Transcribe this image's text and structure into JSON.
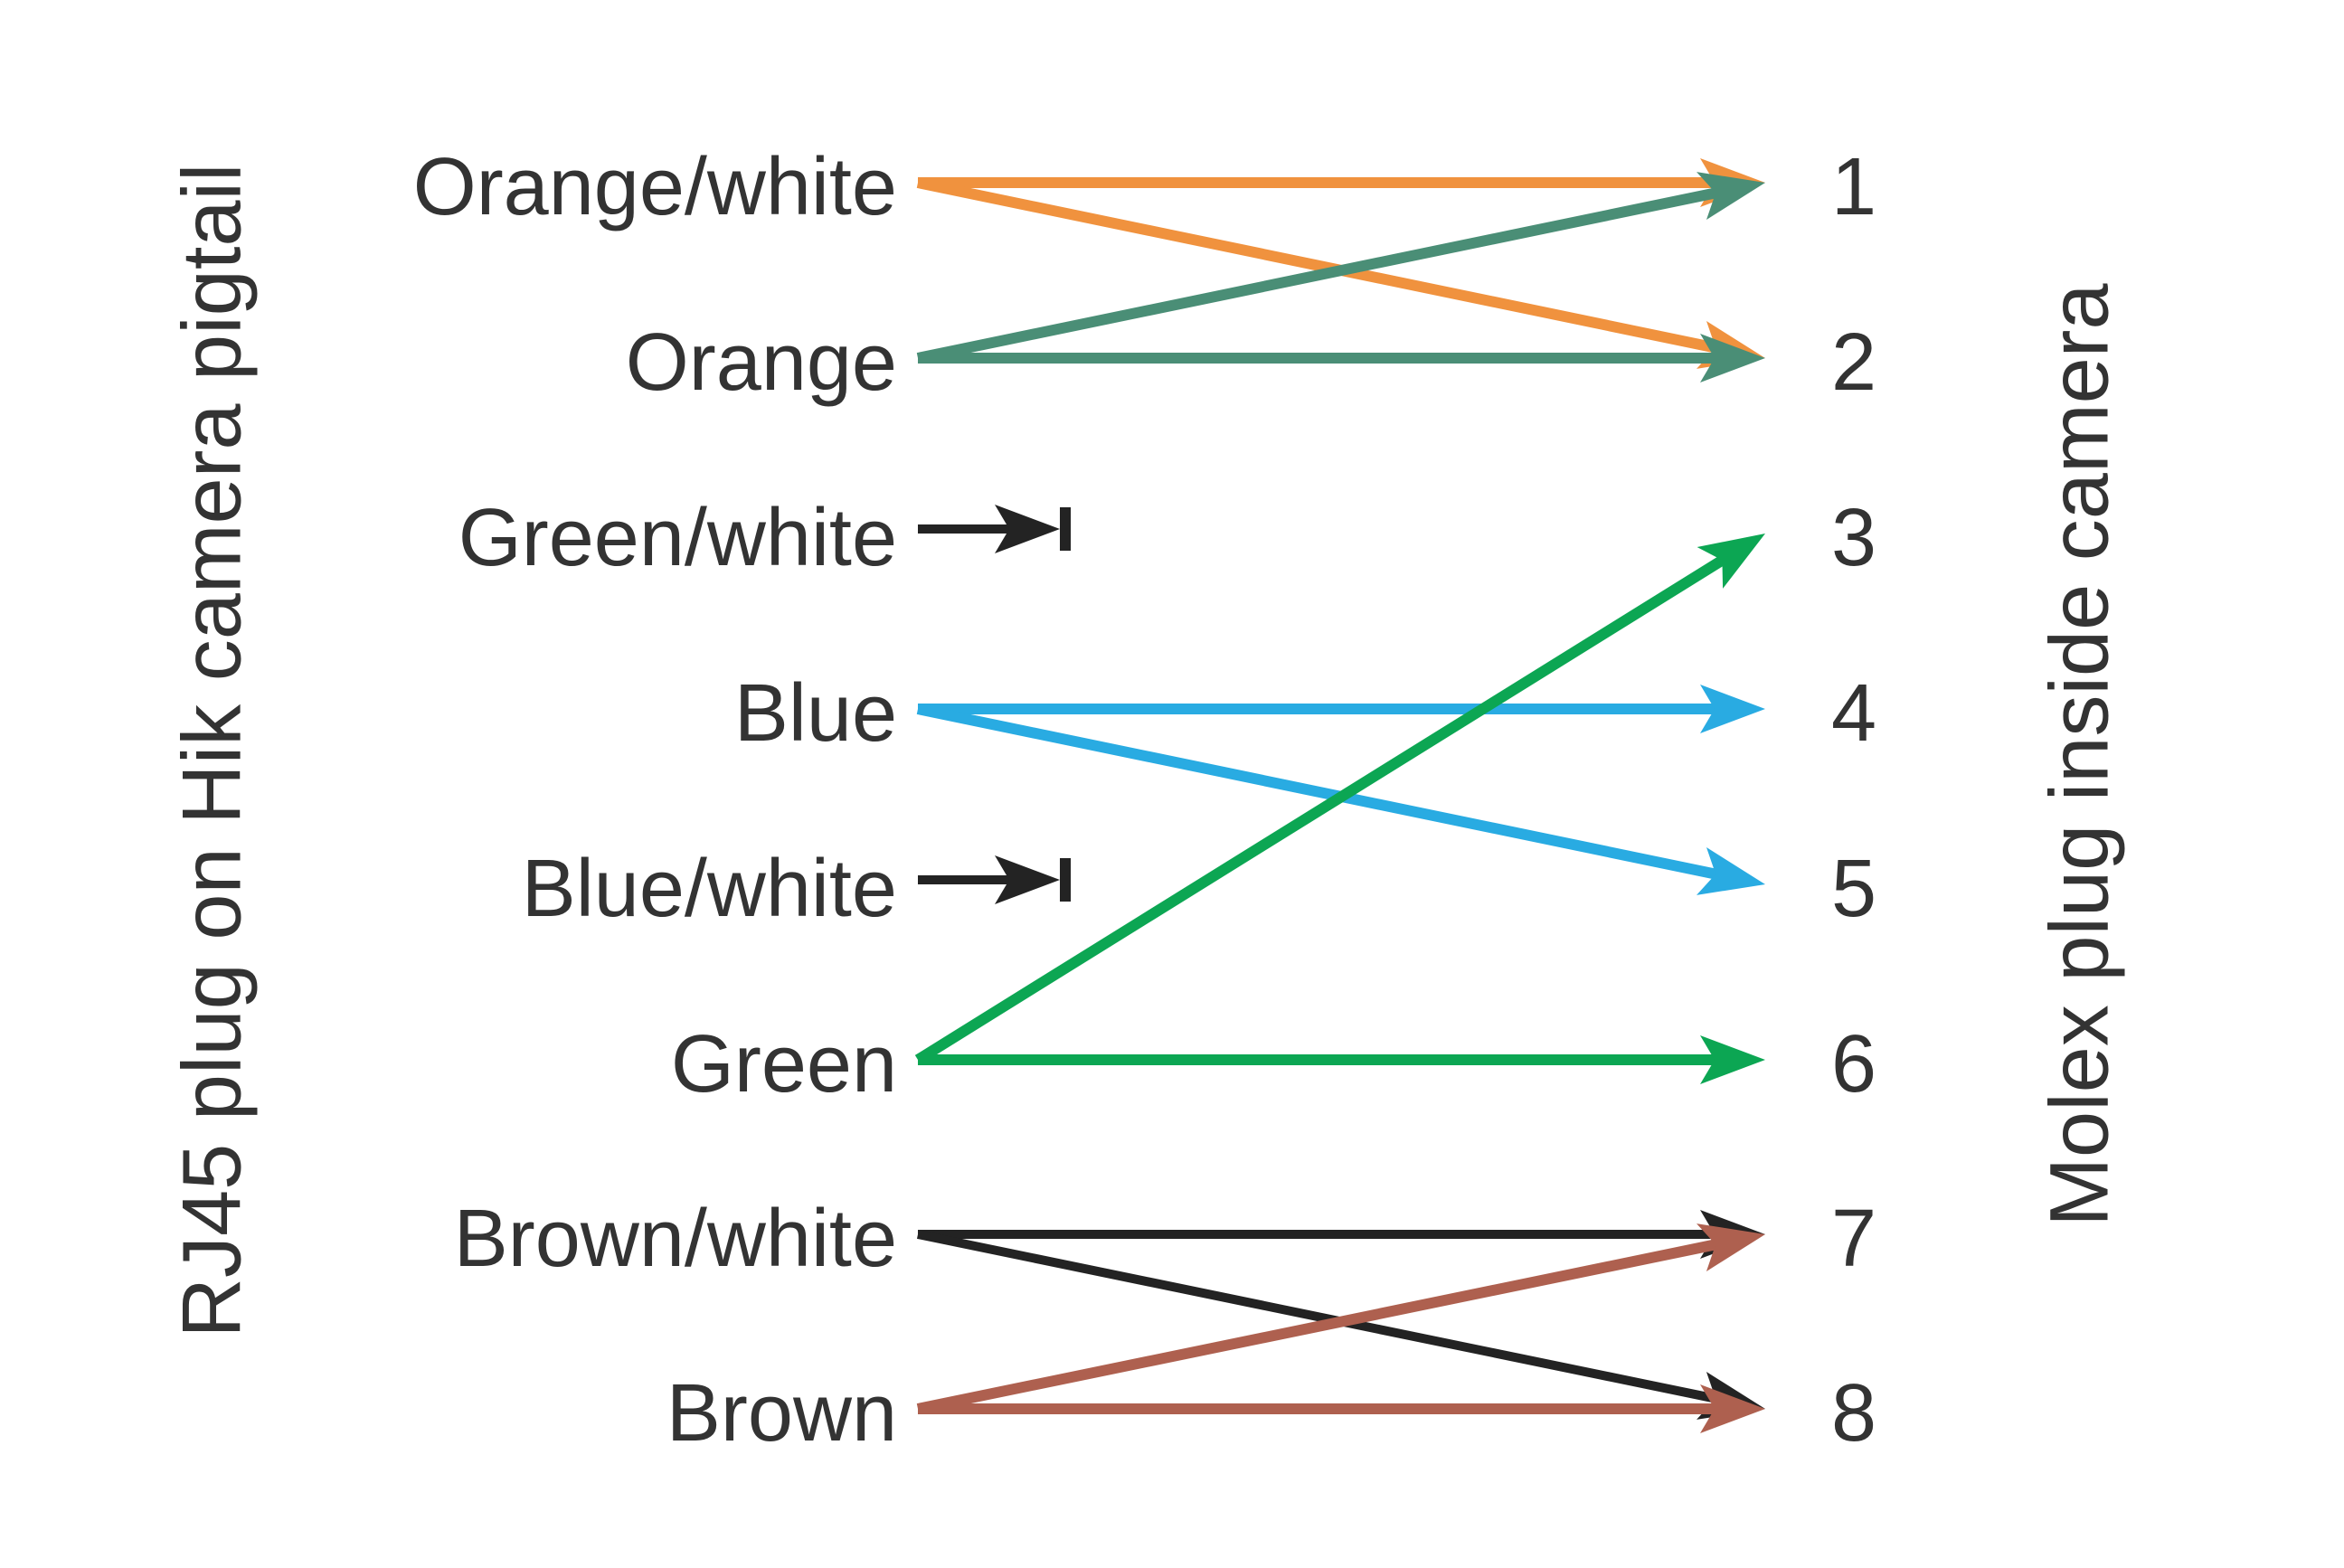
{
  "figure": {
    "left_axis_label": "RJ45 plug on Hik camera pigtail",
    "right_axis_label": "Molex plug inside camera"
  },
  "wires": [
    "Orange/white",
    "Orange",
    "Green/white",
    "Blue",
    "Blue/white",
    "Green",
    "Brown/white",
    "Brown"
  ],
  "pins": [
    "1",
    "2",
    "3",
    "4",
    "5",
    "6",
    "7",
    "8"
  ],
  "colors": {
    "orange": "#F0923E",
    "teal": "#4A8E76",
    "blue": "#29ABE2",
    "green": "#0CA653",
    "black": "#232323",
    "brown": "#AE604F",
    "text": "#333333",
    "background": "#FFFFFF"
  },
  "connections": [
    {
      "from": "Orange/white",
      "to": "1",
      "color": "orange",
      "style": "straight"
    },
    {
      "from": "Orange/white",
      "to": "2",
      "color": "orange",
      "style": "diagonal"
    },
    {
      "from": "Orange",
      "to": "1",
      "color": "teal",
      "style": "diagonal"
    },
    {
      "from": "Orange",
      "to": "2",
      "color": "teal",
      "style": "straight"
    },
    {
      "from": "Green/white",
      "to": null,
      "color": "black",
      "style": "stub"
    },
    {
      "from": "Blue",
      "to": "4",
      "color": "blue",
      "style": "straight"
    },
    {
      "from": "Blue",
      "to": "5",
      "color": "blue",
      "style": "diagonal"
    },
    {
      "from": "Blue/white",
      "to": null,
      "color": "black",
      "style": "stub"
    },
    {
      "from": "Green",
      "to": "3",
      "color": "green",
      "style": "diagonal"
    },
    {
      "from": "Green",
      "to": "6",
      "color": "green",
      "style": "straight"
    },
    {
      "from": "Brown/white",
      "to": "7",
      "color": "black",
      "style": "straight"
    },
    {
      "from": "Brown/white",
      "to": "8",
      "color": "black",
      "style": "diagonal"
    },
    {
      "from": "Brown",
      "to": "7",
      "color": "brown",
      "style": "diagonal"
    },
    {
      "from": "Brown",
      "to": "8",
      "color": "brown",
      "style": "straight"
    }
  ]
}
